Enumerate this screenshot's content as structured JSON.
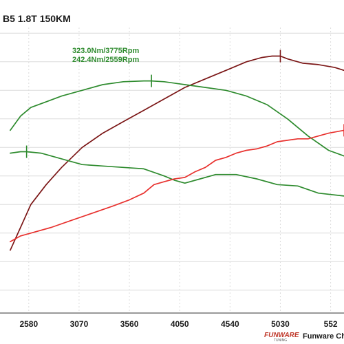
{
  "chart_data": {
    "type": "line",
    "title": "B5 1.8T 150KM",
    "xlabel": "",
    "ylabel": "",
    "x_ticks": [
      "2580",
      "3070",
      "3560",
      "4050",
      "4540",
      "5030",
      "552"
    ],
    "xlim": [
      2300,
      5650
    ],
    "ylim": [
      0,
      100
    ],
    "grid": true,
    "legend": "none",
    "series": [
      {
        "color": "#7b1616",
        "x": [
          2400,
          2500,
          2600,
          2750,
          2900,
          3100,
          3300,
          3500,
          3700,
          3900,
          4100,
          4300,
          4500,
          4700,
          4850,
          4950,
          5030,
          5100,
          5250,
          5400,
          5560,
          5650
        ],
        "y": [
          22,
          30,
          38,
          45,
          51,
          58,
          63,
          67,
          71,
          75,
          79,
          82,
          85,
          88,
          89.5,
          90,
          90,
          89,
          87.5,
          87,
          86,
          85
        ]
      },
      {
        "color": "#2e8b2e",
        "x": [
          2400,
          2500,
          2600,
          2750,
          2900,
          3100,
          3300,
          3500,
          3700,
          3775,
          3900,
          4100,
          4300,
          4500,
          4700,
          4900,
          5100,
          5300,
          5500,
          5650
        ],
        "y": [
          64,
          69,
          72,
          74,
          76,
          78,
          80,
          81,
          81.3,
          81.3,
          81,
          80,
          79,
          78,
          76,
          73,
          68,
          62,
          57,
          55
        ]
      },
      {
        "color": "#2e8b2e",
        "x": [
          2400,
          2500,
          2559,
          2700,
          2900,
          3100,
          3300,
          3500,
          3700,
          3900,
          4000,
          4100,
          4250,
          4400,
          4600,
          4800,
          5000,
          5200,
          5400,
          5650
        ],
        "y": [
          56,
          56.5,
          56.5,
          56,
          54,
          52,
          51.5,
          51,
          50.5,
          48,
          46.5,
          45.5,
          47,
          48.5,
          48.5,
          47,
          45,
          44.5,
          42,
          41
        ]
      },
      {
        "color": "#e8312e",
        "x": [
          2400,
          2500,
          2600,
          2800,
          3000,
          3200,
          3400,
          3550,
          3700,
          3800,
          3900,
          4000,
          4100,
          4200,
          4300,
          4400,
          4500,
          4600,
          4700,
          4800,
          4900,
          5000,
          5100,
          5200,
          5300,
          5400,
          5500,
          5650
        ],
        "y": [
          25,
          27,
          28,
          30,
          32.5,
          35,
          37.5,
          39.5,
          42,
          45,
          46,
          47,
          47.5,
          49.5,
          51,
          53.5,
          54.5,
          56,
          57,
          57.5,
          58.5,
          60,
          60.5,
          61,
          61,
          62,
          63,
          64
        ]
      }
    ],
    "annotations": [
      {
        "text": "323.0Nm/3775Rpm",
        "x": 3775,
        "y": 81.3
      },
      {
        "text": "242.4Nm/2559Rpm",
        "x": 2559,
        "y": 56.5
      }
    ],
    "markers": [
      {
        "x": 5030,
        "y": 90,
        "color": "#7b1616"
      },
      {
        "x": 3775,
        "y": 81.3,
        "color": "#2e8b2e"
      },
      {
        "x": 2559,
        "y": 56.5,
        "color": "#2e8b2e"
      },
      {
        "x": 5650,
        "y": 64,
        "color": "#e8312e"
      }
    ],
    "gridline_y": [
      8,
      18,
      28,
      38,
      48,
      58,
      68,
      78,
      88,
      98
    ]
  },
  "brand": {
    "logo_text": "FUNWARE",
    "logo_sub": "TUNING",
    "credit": "Funware Chi"
  }
}
